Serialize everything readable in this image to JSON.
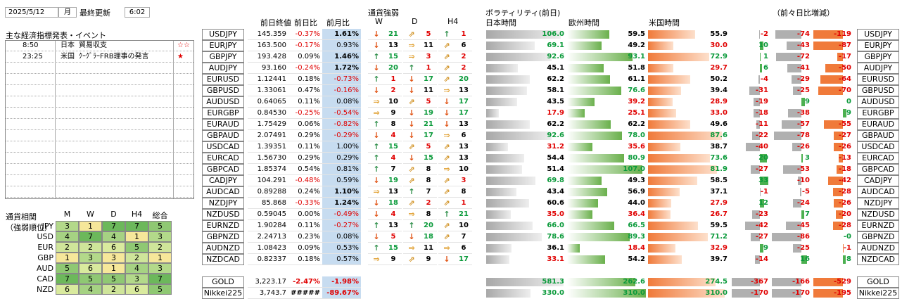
{
  "header": {
    "date": "2025/5/12",
    "weekday": "月",
    "updated_label": "最終更新",
    "time": "6:02"
  },
  "events": {
    "title": "主な経済指標発表・イベント",
    "rows": [
      {
        "time": "8:50",
        "country": "日本",
        "name": "貿易収支",
        "mark": "☆☆"
      },
      {
        "time": "23:25",
        "country": "米国",
        "name": "ｸｰｸﾞﾗｰFRB理事の発言",
        "mark": "★"
      }
    ]
  },
  "corr": {
    "title1": "通貨相関",
    "title2": "（強弱順位）",
    "cols": [
      "M",
      "W",
      "D",
      "H4",
      "総合"
    ],
    "rows": [
      {
        "cur": "JPY",
        "vals": [
          3,
          1,
          7,
          7,
          5
        ]
      },
      {
        "cur": "USD",
        "vals": [
          4,
          7,
          4,
          1,
          3
        ]
      },
      {
        "cur": "EUR",
        "vals": [
          2,
          2,
          6,
          5,
          2
        ]
      },
      {
        "cur": "GBP",
        "vals": [
          1,
          3,
          3,
          2,
          1
        ]
      },
      {
        "cur": "AUD",
        "vals": [
          5,
          6,
          1,
          4,
          3
        ]
      },
      {
        "cur": "CAD",
        "vals": [
          7,
          5,
          5,
          3,
          7
        ]
      },
      {
        "cur": "NZD",
        "vals": [
          6,
          4,
          2,
          6,
          5
        ]
      }
    ]
  },
  "cols": {
    "prev_close": "前日終値",
    "dod": "前日比",
    "mom": "前月比",
    "strength": "通貨強弱",
    "W": "W",
    "D": "D",
    "H4": "H4",
    "vol": "ボラティリティ(前日)",
    "jp": "日本時間",
    "eu": "欧州時間",
    "us": "米国時間",
    "diff": "（前々日比増減）"
  },
  "pairs": [
    {
      "p": "USDJPY",
      "c": "145.359",
      "d": "-0.37%",
      "m": "1.61%",
      "wa": "dn",
      "wn": "21",
      "da": "ne",
      "dn": "5",
      "ha": "up",
      "hn": "1",
      "jp": "106.0",
      "eu": "59.5",
      "us": "55.9",
      "d1": "-2",
      "d2": "-74",
      "d3": "-119"
    },
    {
      "p": "EURJPY",
      "c": "163.500",
      "d": "-0.17%",
      "m": "0.93%",
      "wa": "dn",
      "wn": "13",
      "da": "rt",
      "dn": "11",
      "ha": "ne",
      "hn": "6",
      "jp": "69.1",
      "eu": "49.2",
      "us": "30.0",
      "d1": "10",
      "d2": "-43",
      "d3": "-87"
    },
    {
      "p": "GBPJPY",
      "c": "193.428",
      "d": "0.09%",
      "m": "1.46%",
      "wa": "up",
      "wn": "15",
      "da": "rt",
      "dn": "3",
      "ha": "ne",
      "hn": "2",
      "jp": "92.6",
      "eu": "93.1",
      "us": "72.9",
      "d1": "1",
      "d2": "-72",
      "d3": "-17"
    },
    {
      "p": "AUDJPY",
      "c": "93.160",
      "d": "-0.24%",
      "m": "1.72%",
      "wa": "dn",
      "wn": "20",
      "da": "up",
      "dn": "1",
      "ha": "ne",
      "hn": "2",
      "jp": "45.1",
      "eu": "51.8",
      "us": "29.7",
      "d1": "6",
      "d2": "-41",
      "d3": "-50"
    },
    {
      "p": "EURUSD",
      "c": "1.12441",
      "d": "0.18%",
      "m": "-0.73%",
      "wa": "up",
      "wn": "1",
      "da": "dn",
      "dn": "17",
      "ha": "ne",
      "hn": "20",
      "jp": "62.2",
      "eu": "61.1",
      "us": "50.2",
      "d1": "-4",
      "d2": "-29",
      "d3": "-64"
    },
    {
      "p": "GBPUSD",
      "c": "1.33061",
      "d": "0.47%",
      "m": "-0.16%",
      "wa": "dn",
      "wn": "2",
      "da": "dn",
      "dn": "11",
      "ha": "rt",
      "hn": "13",
      "jp": "58.1",
      "eu": "76.6",
      "us": "39.4",
      "d1": "-31",
      "d2": "-25",
      "d3": "-70"
    },
    {
      "p": "AUDUSD",
      "c": "0.64065",
      "d": "0.11%",
      "m": "0.08%",
      "wa": "rt",
      "wn": "10",
      "da": "ne",
      "dn": "5",
      "ha": "dn",
      "hn": "17",
      "jp": "43.5",
      "eu": "39.2",
      "us": "28.9",
      "d1": "-19",
      "d2": "9",
      "d3": "0"
    },
    {
      "p": "EURGBP",
      "c": "0.84530",
      "d": "-0.25%",
      "m": "-0.54%",
      "wa": "rt",
      "wn": "9",
      "da": "dn",
      "dn": "19",
      "ha": "dn",
      "hn": "17",
      "jp": "17.9",
      "eu": "25.1",
      "us": "33.0",
      "d1": "-18",
      "d2": "-38",
      "d3": "9"
    },
    {
      "p": "EURAUD",
      "c": "1.75429",
      "d": "0.06%",
      "m": "-0.82%",
      "wa": "up",
      "wn": "8",
      "da": "dn",
      "dn": "21",
      "ha": "dn",
      "hn": "13",
      "jp": "62.2",
      "eu": "62.2",
      "us": "49.6",
      "d1": "-11",
      "d2": "-57",
      "d3": "-55"
    },
    {
      "p": "GBPAUD",
      "c": "2.07491",
      "d": "0.29%",
      "m": "-0.29%",
      "wa": "dn",
      "wn": "4",
      "da": "dn",
      "dn": "17",
      "ha": "rt",
      "hn": "6",
      "jp": "92.6",
      "eu": "78.0",
      "us": "87.6",
      "d1": "-22",
      "d2": "-78",
      "d3": "-27"
    },
    {
      "p": "USDCAD",
      "c": "1.39351",
      "d": "0.11%",
      "m": "1.00%",
      "wa": "up",
      "wn": "15",
      "da": "ne",
      "dn": "5",
      "ha": "ne",
      "hn": "13",
      "jp": "31.2",
      "eu": "35.6",
      "us": "38.7",
      "d1": "-40",
      "d2": "-26",
      "d3": "-26"
    },
    {
      "p": "EURCAD",
      "c": "1.56730",
      "d": "0.29%",
      "m": "0.29%",
      "wa": "up",
      "wn": "4",
      "da": "dn",
      "dn": "15",
      "ha": "ne",
      "hn": "13",
      "jp": "54.4",
      "eu": "80.9",
      "us": "73.6",
      "d1": "20",
      "d2": "3",
      "d3": "-13"
    },
    {
      "p": "GBPCAD",
      "c": "1.85374",
      "d": "0.54%",
      "m": "0.81%",
      "wa": "up",
      "wn": "7",
      "da": "ne",
      "dn": "8",
      "ha": "rt",
      "hn": "10",
      "jp": "51.4",
      "eu": "107.0",
      "us": "81.9",
      "d1": "-27",
      "d2": "-53",
      "d3": "-18"
    },
    {
      "p": "CADJPY",
      "c": "104.291",
      "d": "-0.48%",
      "m": "0.59%",
      "wa": "dn",
      "wn": "19",
      "da": "ne",
      "dn": "8",
      "ha": "ne",
      "hn": "3",
      "jp": "69.8",
      "eu": "49.3",
      "us": "58.5",
      "d1": "33",
      "d2": "-10",
      "d3": "-42"
    },
    {
      "p": "AUDCAD",
      "c": "0.89288",
      "d": "0.24%",
      "m": "1.10%",
      "wa": "rt",
      "wn": "13",
      "da": "up",
      "dn": "7",
      "ha": "ne",
      "hn": "8",
      "jp": "43.4",
      "eu": "56.9",
      "us": "37.1",
      "d1": "-1",
      "d2": "-5",
      "d3": "-28"
    },
    {
      "p": "NZDJPY",
      "c": "85.868",
      "d": "-0.33%",
      "m": "1.24%",
      "wa": "dn",
      "wn": "18",
      "da": "ne",
      "dn": "2",
      "ha": "ne",
      "hn": "1",
      "jp": "60.6",
      "eu": "44.0",
      "us": "27.9",
      "d1": "12",
      "d2": "-24",
      "d3": "-26"
    },
    {
      "p": "NZDUSD",
      "c": "0.59045",
      "d": "0.00%",
      "m": "-0.49%",
      "wa": "dn",
      "wn": "4",
      "da": "rt",
      "dn": "8",
      "ha": "up",
      "hn": "21",
      "jp": "35.0",
      "eu": "36.4",
      "us": "26.7",
      "d1": "-23",
      "d2": "7",
      "d3": "-20"
    },
    {
      "p": "EURNZD",
      "c": "1.90284",
      "d": "0.11%",
      "m": "-0.27%",
      "wa": "up",
      "wn": "13",
      "da": "up",
      "dn": "20",
      "ha": "ne",
      "hn": "10",
      "jp": "66.0",
      "eu": "66.5",
      "us": "59.5",
      "d1": "-42",
      "d2": "-45",
      "d3": "-28"
    },
    {
      "p": "GBPNZD",
      "c": "2.24713",
      "d": "0.23%",
      "m": "0.08%",
      "wa": "dn",
      "wn": "5",
      "da": "dn",
      "dn": "18",
      "ha": "ne",
      "hn": "7",
      "jp": "78.6",
      "eu": "89.3",
      "us": "71.2",
      "d1": "-27",
      "d2": "-86",
      "d3": "-0"
    },
    {
      "p": "AUDNZD",
      "c": "1.08423",
      "d": "0.09%",
      "m": "0.53%",
      "wa": "up",
      "wn": "15",
      "da": "rt",
      "dn": "11",
      "ha": "rt",
      "hn": "6",
      "jp": "36.1",
      "eu": "18.4",
      "us": "32.9",
      "d1": "9",
      "d2": "-25",
      "d3": "-1"
    },
    {
      "p": "NZDCAD",
      "c": "0.82337",
      "d": "0.18%",
      "m": "0.57%",
      "wa": "rt",
      "wn": "9",
      "da": "ne",
      "dn": "9",
      "ha": "dn",
      "hn": "17",
      "jp": "33.1",
      "eu": "54.2",
      "us": "39.7",
      "d1": "-14",
      "d2": "16",
      "d3": "8"
    }
  ],
  "extra": [
    {
      "p": "GOLD",
      "c": "3,223.17",
      "d": "-2.47%",
      "m": "-1.98%",
      "jp": "581.3",
      "eu": "262.6",
      "us": "274.5",
      "d1": "-367",
      "d2": "-166",
      "d3": "-529"
    },
    {
      "p": "Nikkei225",
      "c": "3,743.7",
      "d": "#####",
      "m": "-89.67%",
      "jp": "330.0",
      "eu": "310.0",
      "us": "310.0",
      "d1": "-170",
      "d2": "-170",
      "d3": "-195"
    }
  ],
  "arrows": {
    "up": "↑",
    "dn": "↓",
    "ne": "⇗",
    "rt": "⇒"
  },
  "colors": {
    "green": "#0a9a3a",
    "red": "#e00000",
    "blue_cell": "#c7dcf0",
    "orange": "#f07a3a",
    "jpbar": "#b0b0b0",
    "eubar": "#6ab04c"
  }
}
